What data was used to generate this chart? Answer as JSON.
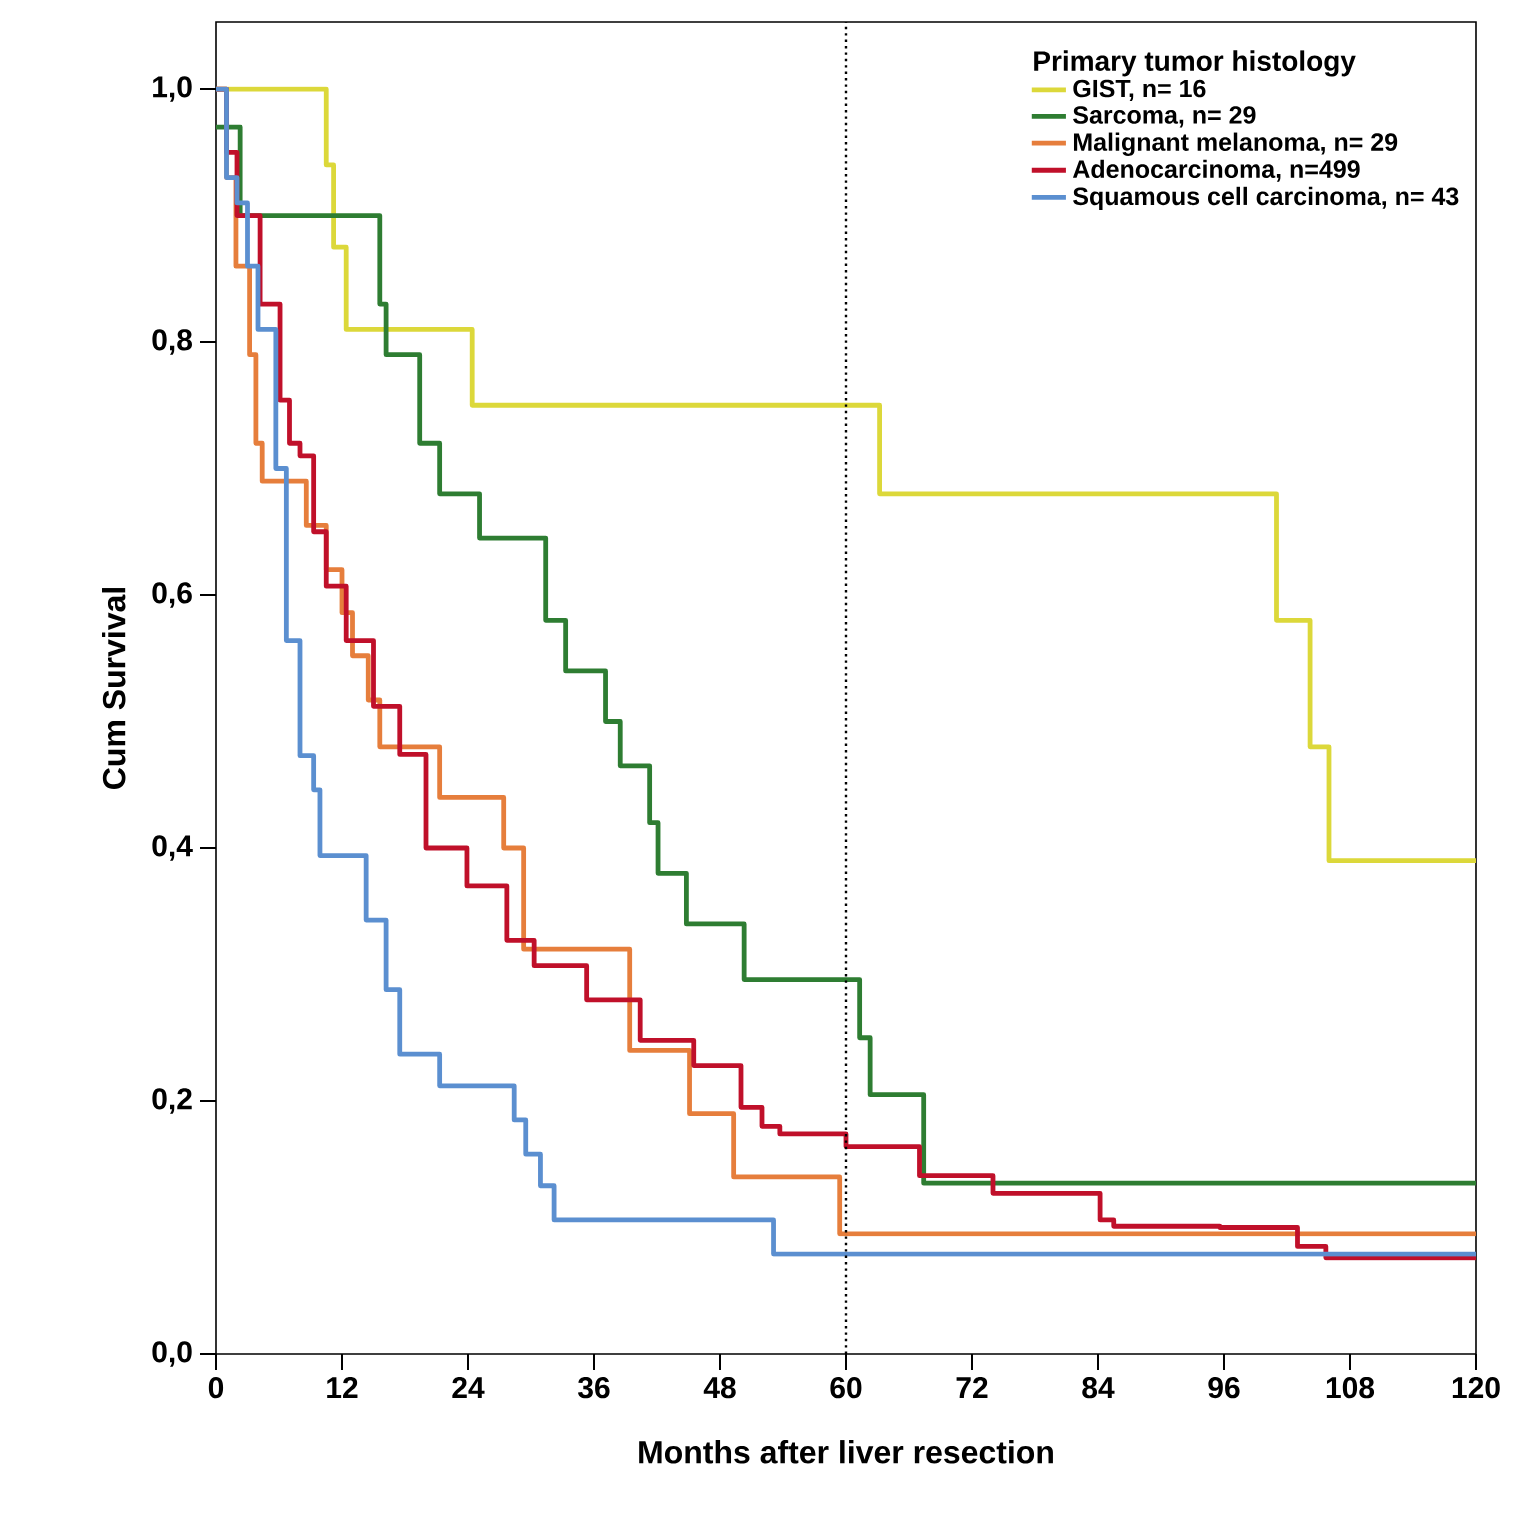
{
  "chart_data": {
    "type": "step",
    "xlabel": "Months after liver resection",
    "ylabel": "Cum Survival",
    "legend_title": "Primary tumor histology",
    "xlim": [
      0,
      120
    ],
    "ylim": [
      0,
      1.053
    ],
    "xticks": [
      0,
      12,
      24,
      36,
      48,
      60,
      72,
      84,
      96,
      108,
      120
    ],
    "yticks": [
      {
        "value": 0,
        "label": "0,0"
      },
      {
        "value": 0.2,
        "label": "0,2"
      },
      {
        "value": 0.4,
        "label": "0,4"
      },
      {
        "value": 0.6,
        "label": "0,6"
      },
      {
        "value": 0.8,
        "label": "0,8"
      },
      {
        "value": 1.0,
        "label": "1,0"
      }
    ],
    "grid": false,
    "legend": "top right",
    "marker": "none",
    "line_style": "solid",
    "ref_lines": [
      {
        "axis": "x",
        "value": 60,
        "line_style": "dotted",
        "color": "#000000"
      }
    ],
    "series": [
      {
        "name": "GIST,                              n= 16",
        "color": "#dcd83a",
        "x": [
          0,
          10.5,
          11.2,
          12.4,
          24.4,
          63.2,
          101,
          104.2,
          106,
          120
        ],
        "values": [
          1.0,
          0.94,
          0.875,
          0.81,
          0.75,
          0.68,
          0.58,
          0.48,
          0.39,
          0.39
        ]
      },
      {
        "name": "Sarcoma,                        n= 29",
        "color": "#2e7d32",
        "x": [
          0,
          2.3,
          15.6,
          16.2,
          19.4,
          21.3,
          25.1,
          31.4,
          33.3,
          37.1,
          38.5,
          41.3,
          42.1,
          44.8,
          50.3,
          61.3,
          62.3,
          67.4,
          120
        ],
        "values": [
          0.97,
          0.9,
          0.83,
          0.79,
          0.72,
          0.68,
          0.645,
          0.58,
          0.54,
          0.5,
          0.465,
          0.42,
          0.38,
          0.34,
          0.296,
          0.25,
          0.205,
          0.135,
          0.135
        ]
      },
      {
        "name": "Malignant melanoma,     n= 29",
        "color": "#e67e3c",
        "x": [
          0,
          1,
          1.9,
          3.2,
          3.8,
          4.4,
          8.6,
          10.5,
          12.0,
          13.0,
          14.5,
          15.6,
          21.3,
          27.4,
          29.3,
          39.4,
          45.1,
          49.3,
          59.4,
          120
        ],
        "values": [
          1.0,
          0.93,
          0.86,
          0.79,
          0.72,
          0.69,
          0.655,
          0.62,
          0.586,
          0.552,
          0.517,
          0.48,
          0.44,
          0.4,
          0.32,
          0.24,
          0.19,
          0.14,
          0.095,
          0.095
        ]
      },
      {
        "name": "Adenocarcinoma,               n=499",
        "color": "#c0102a",
        "x": [
          0,
          1,
          2,
          4.2,
          6.1,
          7.0,
          8.0,
          9.3,
          10.5,
          12.4,
          15,
          17.5,
          20,
          23.9,
          27.7,
          30.3,
          35.3,
          40.4,
          45.5,
          50,
          52,
          53.7,
          60,
          67,
          74,
          84.2,
          85.5,
          95.6,
          103,
          105.7,
          120
        ],
        "values": [
          1.0,
          0.95,
          0.9,
          0.83,
          0.754,
          0.72,
          0.71,
          0.65,
          0.607,
          0.564,
          0.512,
          0.474,
          0.4,
          0.37,
          0.327,
          0.307,
          0.28,
          0.248,
          0.228,
          0.195,
          0.18,
          0.174,
          0.164,
          0.141,
          0.127,
          0.106,
          0.101,
          0.1,
          0.085,
          0.076,
          0.076
        ]
      },
      {
        "name": "Squamous cell carcinoma, n= 43",
        "color": "#5b8fd0",
        "x": [
          0,
          1,
          2,
          3,
          4,
          5.7,
          6.7,
          8,
          9.3,
          9.9,
          14.3,
          16.2,
          17.5,
          21.3,
          28.4,
          29.5,
          30.9,
          32.2,
          53.1,
          120
        ],
        "values": [
          1.0,
          0.93,
          0.91,
          0.86,
          0.81,
          0.7,
          0.564,
          0.473,
          0.446,
          0.394,
          0.343,
          0.288,
          0.237,
          0.212,
          0.185,
          0.158,
          0.133,
          0.106,
          0.079,
          0.079
        ]
      }
    ]
  }
}
